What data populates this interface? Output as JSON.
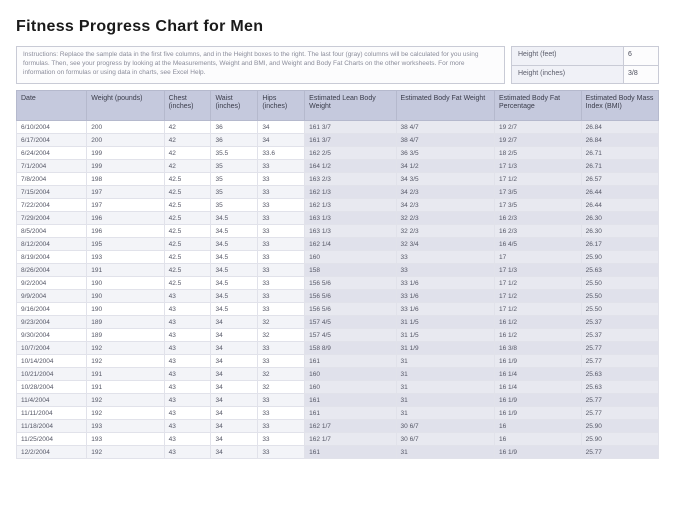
{
  "title": "Fitness Progress Chart for Men",
  "instructions": "Instructions: Replace the sample data in the first five columns, and in the Height boxes to the right. The last four (gray) columns will be calculated for you using formulas. Then, see your progress by looking at the Measurements, Weight and BMI, and Weight and Body Fat Charts on the other worksheets. For more information on formulas or using data in charts, see Excel Help.",
  "height": {
    "feet_label": "Height (feet)",
    "feet": "6",
    "inches_label": "Height (inches)",
    "inches": "3/8"
  },
  "columns": [
    "Date",
    "Weight (pounds)",
    "Chest (inches)",
    "Waist (inches)",
    "Hips (inches)",
    "Estimated Lean Body Weight",
    "Estimated Body Fat Weight",
    "Estimated Body Fat Percentage",
    "Estimated Body Mass Index (BMI)"
  ],
  "rows": [
    [
      "6/10/2004",
      "200",
      "42",
      "36",
      "34",
      "161 3/7",
      "38 4/7",
      "19 2/7",
      "26.84"
    ],
    [
      "6/17/2004",
      "200",
      "42",
      "36",
      "34",
      "161 3/7",
      "38 4/7",
      "19 2/7",
      "26.84"
    ],
    [
      "6/24/2004",
      "199",
      "42",
      "35.5",
      "33.6",
      "162 2/5",
      "36 3/5",
      "18 2/5",
      "26.71"
    ],
    [
      "7/1/2004",
      "199",
      "42",
      "35",
      "33",
      "164 1/2",
      "34 1/2",
      "17 1/3",
      "26.71"
    ],
    [
      "7/8/2004",
      "198",
      "42.5",
      "35",
      "33",
      "163 2/3",
      "34 3/5",
      "17 1/2",
      "26.57"
    ],
    [
      "7/15/2004",
      "197",
      "42.5",
      "35",
      "33",
      "162 1/3",
      "34 2/3",
      "17 3/5",
      "26.44"
    ],
    [
      "7/22/2004",
      "197",
      "42.5",
      "35",
      "33",
      "162 1/3",
      "34 2/3",
      "17 3/5",
      "26.44"
    ],
    [
      "7/29/2004",
      "196",
      "42.5",
      "34.5",
      "33",
      "163 1/3",
      "32 2/3",
      "16 2/3",
      "26.30"
    ],
    [
      "8/5/2004",
      "196",
      "42.5",
      "34.5",
      "33",
      "163 1/3",
      "32 2/3",
      "16 2/3",
      "26.30"
    ],
    [
      "8/12/2004",
      "195",
      "42.5",
      "34.5",
      "33",
      "162 1/4",
      "32 3/4",
      "16 4/5",
      "26.17"
    ],
    [
      "8/19/2004",
      "193",
      "42.5",
      "34.5",
      "33",
      "160",
      "33",
      "17",
      "25.90"
    ],
    [
      "8/26/2004",
      "191",
      "42.5",
      "34.5",
      "33",
      "158",
      "33",
      "17 1/3",
      "25.63"
    ],
    [
      "9/2/2004",
      "190",
      "42.5",
      "34.5",
      "33",
      "156 5/6",
      "33 1/6",
      "17 1/2",
      "25.50"
    ],
    [
      "9/9/2004",
      "190",
      "43",
      "34.5",
      "33",
      "156 5/6",
      "33 1/6",
      "17 1/2",
      "25.50"
    ],
    [
      "9/16/2004",
      "190",
      "43",
      "34.5",
      "33",
      "156 5/6",
      "33 1/6",
      "17 1/2",
      "25.50"
    ],
    [
      "9/23/2004",
      "189",
      "43",
      "34",
      "32",
      "157 4/5",
      "31 1/5",
      "16 1/2",
      "25.37"
    ],
    [
      "9/30/2004",
      "189",
      "43",
      "34",
      "32",
      "157 4/5",
      "31 1/5",
      "16 1/2",
      "25.37"
    ],
    [
      "10/7/2004",
      "192",
      "43",
      "34",
      "33",
      "158 8/9",
      "31 1/9",
      "16 3/8",
      "25.77"
    ],
    [
      "10/14/2004",
      "192",
      "43",
      "34",
      "33",
      "161",
      "31",
      "16 1/9",
      "25.77"
    ],
    [
      "10/21/2004",
      "191",
      "43",
      "34",
      "32",
      "160",
      "31",
      "16 1/4",
      "25.63"
    ],
    [
      "10/28/2004",
      "191",
      "43",
      "34",
      "32",
      "160",
      "31",
      "16 1/4",
      "25.63"
    ],
    [
      "11/4/2004",
      "192",
      "43",
      "34",
      "33",
      "161",
      "31",
      "16 1/9",
      "25.77"
    ],
    [
      "11/11/2004",
      "192",
      "43",
      "34",
      "33",
      "161",
      "31",
      "16 1/9",
      "25.77"
    ],
    [
      "11/18/2004",
      "193",
      "43",
      "34",
      "33",
      "162 1/7",
      "30 6/7",
      "16",
      "25.90"
    ],
    [
      "11/25/2004",
      "193",
      "43",
      "34",
      "33",
      "162 1/7",
      "30 6/7",
      "16",
      "25.90"
    ],
    [
      "12/2/2004",
      "192",
      "43",
      "34",
      "33",
      "161",
      "31",
      "16 1/9",
      "25.77"
    ]
  ],
  "style": {
    "header_bg": "#c5c9dd",
    "alt_row_bg": "#f3f4f8",
    "calc_bg": "#e8e9f0",
    "border": "#e1e2ea",
    "title_fontsize": 16,
    "cell_fontsize": 6.5,
    "header_fontsize": 7
  }
}
